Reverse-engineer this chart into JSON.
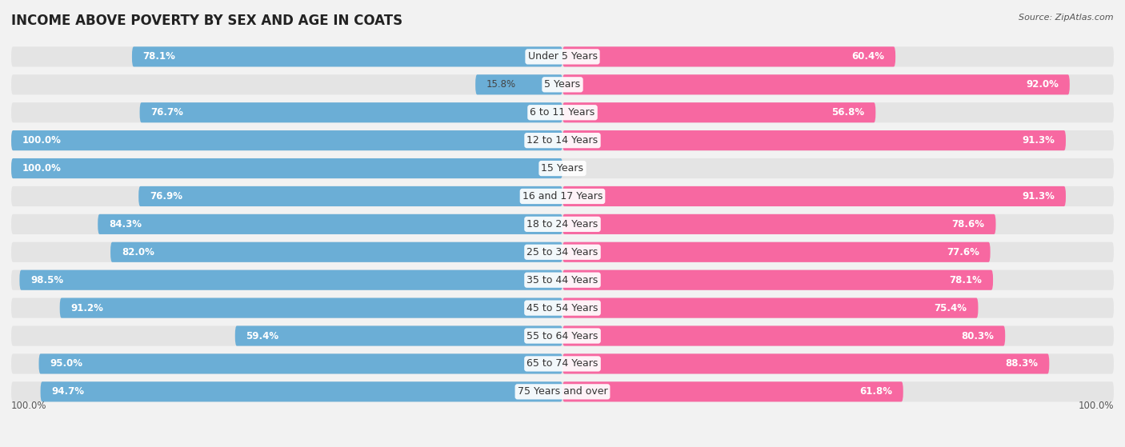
{
  "title": "INCOME ABOVE POVERTY BY SEX AND AGE IN COATS",
  "source": "Source: ZipAtlas.com",
  "categories": [
    "Under 5 Years",
    "5 Years",
    "6 to 11 Years",
    "12 to 14 Years",
    "15 Years",
    "16 and 17 Years",
    "18 to 24 Years",
    "25 to 34 Years",
    "35 to 44 Years",
    "45 to 54 Years",
    "55 to 64 Years",
    "65 to 74 Years",
    "75 Years and over"
  ],
  "male_values": [
    78.1,
    15.8,
    76.7,
    100.0,
    100.0,
    76.9,
    84.3,
    82.0,
    98.5,
    91.2,
    59.4,
    95.0,
    94.7
  ],
  "female_values": [
    60.4,
    92.0,
    56.8,
    91.3,
    0.0,
    91.3,
    78.6,
    77.6,
    78.1,
    75.4,
    80.3,
    88.3,
    61.8
  ],
  "male_color": "#6baed6",
  "female_color": "#f768a1",
  "female_light_color": "#fcc5da",
  "male_light_color": "#d0e8f5",
  "bg_color": "#f2f2f2",
  "row_bg_color": "#e4e4e4",
  "title_fontsize": 12,
  "label_fontsize": 9,
  "value_fontsize": 8.5,
  "legend_fontsize": 9,
  "source_fontsize": 8
}
